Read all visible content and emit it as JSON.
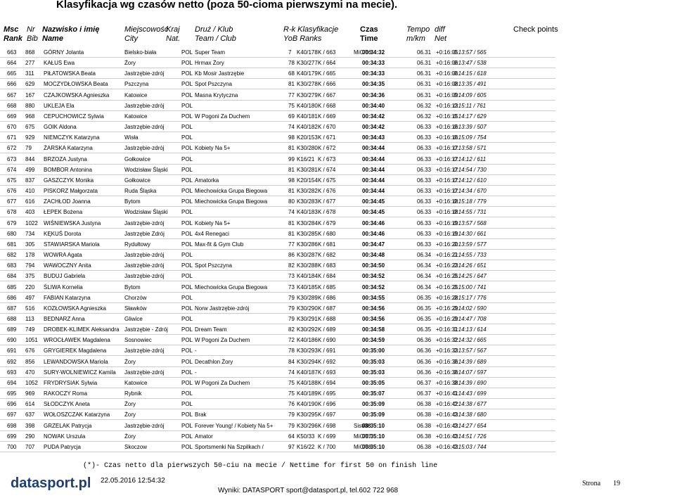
{
  "header": {
    "title": "Klasyfikacja wg czasów netto (poza 50-cioma pierwszymi na mecie).",
    "columns": [
      [
        "Msc",
        "Rank"
      ],
      [
        "Nr",
        "Bib"
      ],
      [
        "Nazwisko i imię",
        "Name"
      ],
      [
        "Miejscowość",
        "City"
      ],
      [
        "Kraj",
        "Nat."
      ],
      [
        "Druż / Klub",
        "Team / Club"
      ],
      [
        "R-k Klasyfikacje",
        "YoB Ranks"
      ],
      [
        "Czas",
        "Time"
      ],
      [
        "Tempo",
        "m/km"
      ],
      [
        "diff",
        "Net"
      ],
      [
        "Check points"
      ]
    ]
  },
  "rows": [
    [
      "663",
      "868",
      "GÓRNY Jolanta",
      "Bielsko-biała",
      "POL",
      "Super Team",
      "7",
      "K40/178",
      "K / 663",
      "MiC/56",
      "00:34:32",
      "06.31",
      "+0:16:05",
      "0:13:57 / 565"
    ],
    [
      "664",
      "277",
      "KAŁUS Ewa",
      "Żory",
      "POL",
      "Hrmax Żory",
      "78",
      "K30/277",
      "K / 664",
      null,
      "00:34:33",
      "06.31",
      "+0:16:06",
      "0:13:47 / 538"
    ],
    [
      "665",
      "311",
      "PIŁATOWSKA Beata",
      "Jastrzębie-zdrój",
      "POL",
      "Kb Mosir Jastrzębie",
      "68",
      "K40/179",
      "K / 665",
      null,
      "00:34:33",
      "06.31",
      "+0:16:06",
      "0:14:15 / 618"
    ],
    [
      "666",
      "629",
      "MOCZYDŁOWSKA Beata",
      "Pszczyna",
      "POL",
      "Spot Pszczyna",
      "81",
      "K30/278",
      "K / 666",
      null,
      "00:34:35",
      "06.31",
      "+0:16:08",
      "0:13:35 / 491"
    ],
    [
      "667",
      "167",
      "CZAJKOWSKA Agnieszka",
      "Katowice",
      "POL",
      "Masna Krytyczna",
      "77",
      "K30/279",
      "K / 667",
      null,
      "00:34:36",
      "06.31",
      "+0:16:09",
      "0:14:09 / 605"
    ],
    [
      "668",
      "880",
      "UKLEJA Ela",
      "Jastrzębie-zdrój",
      "POL",
      null,
      "75",
      "K40/180",
      "K / 668",
      null,
      "00:34:40",
      "06.32",
      "+0:16:13",
      "0:15:11 / 761"
    ],
    [
      "669",
      "968",
      "CEPUCHOWICZ Sylwia",
      "Katowice",
      "POL",
      "W Pogoni Za Duchem",
      "69",
      "K40/181",
      "K / 669",
      null,
      "00:34:42",
      "06.32",
      "+0:16:15",
      "0:14:17 / 629"
    ],
    [
      "670",
      "675",
      "GOIK Aldona",
      "Jastrzębie-zdrój",
      "POL",
      null,
      "74",
      "K40/182",
      "K / 670",
      null,
      "00:34:42",
      "06.33",
      "+0:16:16",
      "0:13:39 / 507"
    ],
    [
      "671",
      "929",
      "NIEMCZYK Katarzyna",
      "Wisła",
      "POL",
      null,
      "98",
      "K20/153",
      "K / 671",
      null,
      "00:34:43",
      "06.33",
      "+0:16:16",
      "0:15:09 / 754"
    ],
    [
      "672",
      "79",
      "ŻARSKA Katarzyna",
      "Jastrzębie-zdrój",
      "POL",
      "Kobiety Na 5+",
      "81",
      "K30/280",
      "K / 672",
      null,
      "00:34:44",
      "06.33",
      "+0:16:17",
      "0:13:58 / 571"
    ],
    [
      "673",
      "844",
      "BRZOZA Justyna",
      "Gołkowice",
      "POL",
      null,
      "99",
      "K16/21",
      "K / 673",
      null,
      "00:34:44",
      "06.33",
      "+0:16:17",
      "0:14:12 / 611"
    ],
    [
      "674",
      "499",
      "BOMBOR Antonina",
      "Wodzisław Śląski",
      "POL",
      null,
      "81",
      "K30/281",
      "K / 674",
      null,
      "00:34:44",
      "06.33",
      "+0:16:17",
      "0:14:54 / 730"
    ],
    [
      "675",
      "837",
      "GASZCZYK Monika",
      "Gołkowice",
      "POL",
      "Amatorka",
      "98",
      "K20/154",
      "K / 675",
      null,
      "00:34:44",
      "06.33",
      "+0:16:17",
      "0:14:12 / 610"
    ],
    [
      "676",
      "410",
      "PISKORZ Małgorzata",
      "Ruda Śląska",
      "POL",
      "Miechowicka Grupa Biegowa",
      "81",
      "K30/282",
      "K / 676",
      null,
      "00:34:44",
      "06.33",
      "+0:16:17",
      "0:14:34 / 670"
    ],
    [
      "677",
      "616",
      "ZACHŁOD Joanna",
      "Bytom",
      "POL",
      "Miechowicka Grupa Biegowa",
      "80",
      "K30/283",
      "K / 677",
      null,
      "00:34:45",
      "06.33",
      "+0:16:18",
      "0:15:18 / 779"
    ],
    [
      "678",
      "403",
      "ŁEPEK Bożena",
      "Wodzisław Śląski",
      "POL",
      null,
      "74",
      "K40/183",
      "K / 678",
      null,
      "00:34:45",
      "06.33",
      "+0:16:18",
      "0:14:55 / 731"
    ],
    [
      "679",
      "1022",
      "WIŚNIEWSKA Justyna",
      "Jastrzębie-zdrój",
      "POL",
      "Kobiety Na 5+",
      "81",
      "K30/284",
      "K / 679",
      null,
      "00:34:46",
      "06.33",
      "+0:16:19",
      "0:13:57 / 568"
    ],
    [
      "680",
      "734",
      "KĘKUŚ Dorota",
      "Jastrzębie Zdrój",
      "POL",
      "4x4 Renegaci",
      "81",
      "K30/285",
      "K / 680",
      null,
      "00:34:46",
      "06.33",
      "+0:16:19",
      "0:14:30 / 661"
    ],
    [
      "681",
      "305",
      "STAWIARSKA Mariola",
      "Rydułtowy",
      "POL",
      "Max-fit & Gym Club",
      "77",
      "K30/286",
      "K / 681",
      null,
      "00:34:47",
      "06.33",
      "+0:16:20",
      "0:13:59 / 577"
    ],
    [
      "682",
      "178",
      "WOWRA Agata",
      "Jastrzębie-zdrój",
      "POL",
      null,
      "86",
      "K30/287",
      "K / 682",
      null,
      "00:34:48",
      "06.34",
      "+0:16:21",
      "0:14:55 / 733"
    ],
    [
      "683",
      "794",
      "WAWOCZNY Anita",
      "Jastrzębie-zdrój",
      "POL",
      "Spot Pszczyna",
      "82",
      "K30/288",
      "K / 683",
      null,
      "00:34:50",
      "06.34",
      "+0:16:23",
      "0:14:26 / 651"
    ],
    [
      "684",
      "375",
      "BUDUJ Gabriela",
      "Jastrzębie-zdrój",
      "POL",
      null,
      "73",
      "K40/184",
      "K / 684",
      null,
      "00:34:52",
      "06.34",
      "+0:16:25",
      "0:14:25 / 647"
    ],
    [
      "685",
      "220",
      "ŚLIWA Kornelia",
      "Bytom",
      "POL",
      "Miechowicka Grupa Biegowa",
      "73",
      "K40/185",
      "K / 685",
      null,
      "00:34:52",
      "06.34",
      "+0:16:25",
      "0:15:00 / 741"
    ],
    [
      "686",
      "497",
      "FABIAN Katarzyna",
      "Chorzów",
      "POL",
      null,
      "79",
      "K30/289",
      "K / 686",
      null,
      "00:34:55",
      "06.35",
      "+0:16:28",
      "0:15:17 / 776"
    ],
    [
      "687",
      "516",
      "KOZŁOWSKA Agnieszka",
      "Sławków",
      "POL",
      "Norw Jastrzębie-zdrój",
      "79",
      "K30/290",
      "K / 687",
      null,
      "00:34:56",
      "06.35",
      "+0:16:29",
      "0:14:02 / 590"
    ],
    [
      "688",
      "113",
      "BEDNARZ Anna",
      "Gliwice",
      "POL",
      null,
      "79",
      "K30/291",
      "K / 688",
      null,
      "00:34:56",
      "06.35",
      "+0:16:29",
      "0:14:47 / 708"
    ],
    [
      "689",
      "749",
      "DROBEK-KLIMEK Aleksandra",
      "Jastrzębie - Zdrój",
      "POL",
      "Dream Team",
      "82",
      "K30/292",
      "K / 689",
      null,
      "00:34:58",
      "06.35",
      "+0:16:31",
      "0:14:13 / 614"
    ],
    [
      "690",
      "1051",
      "WROCŁAWEK Magdalena",
      "Sosnowiec",
      "POL",
      "W Pogoni Za Duchem",
      "72",
      "K40/186",
      "K / 690",
      null,
      "00:34:59",
      "06.36",
      "+0:16:32",
      "0:14:32 / 665"
    ],
    [
      "691",
      "676",
      "GRYGIEREK Magdalena",
      "Jastrzębie-zdrój",
      "POL",
      "-",
      "78",
      "K30/293",
      "K / 691",
      null,
      "00:35:00",
      "06.36",
      "+0:16:33",
      "0:13:57 / 567"
    ],
    [
      "692",
      "856",
      "LEWANDOWSKA Mariola",
      "Żory",
      "POL",
      "Decathlon Żory",
      "84",
      "K30/294",
      "K / 692",
      null,
      "00:35:03",
      "06.36",
      "+0:16:36",
      "0:14:39 / 689"
    ],
    [
      "693",
      "470",
      "SURY-WOLNIEWICZ Kamila",
      "Jastrzębie-zdrój",
      "POL",
      "-",
      "74",
      "K40/187",
      "K / 693",
      null,
      "00:35:03",
      "06.36",
      "+0:16:36",
      "0:14:07 / 597"
    ],
    [
      "694",
      "1052",
      "FRYDRYSIAK Sylwia",
      "Katowice",
      "POL",
      "W Pogoni Za Duchem",
      "75",
      "K40/188",
      "K / 694",
      null,
      "00:35:05",
      "06.37",
      "+0:16:38",
      "0:14:39 / 690"
    ],
    [
      "695",
      "969",
      "RAKOCZY Roma",
      "Rybnik",
      "POL",
      null,
      "75",
      "K40/189",
      "K / 695",
      null,
      "00:35:07",
      "06.37",
      "+0:16:41",
      "0:14:43 / 699"
    ],
    [
      "696",
      "614",
      "SŁODCZYK Aneta",
      "Żory",
      "POL",
      null,
      "76",
      "K40/190",
      "K / 696",
      null,
      "00:35:09",
      "06.38",
      "+0:16:42",
      "0:14:38 / 677"
    ],
    [
      "697",
      "637",
      "WOŁOSZCZAK Katarzyna",
      "Żory",
      "POL",
      "Brak",
      "79",
      "K30/295",
      "K / 697",
      null,
      "00:35:09",
      "06.38",
      "+0:16:43",
      "0:14:38 / 680"
    ],
    [
      "698",
      "398",
      "GRZELAK Patrycja",
      "Jastrzębie-zdrój",
      "POL",
      "Forever Young! / Kobiety Na 5+",
      "79",
      "K30/296",
      "K / 698",
      "Sist/38",
      "00:35:10",
      "06.38",
      "+0:16:43",
      "0:14:27 / 654"
    ],
    [
      "699",
      "290",
      "NOWAK Urszula",
      "Żory",
      "POL",
      "Amator",
      "64",
      "K50/33",
      "K / 699",
      "MiC/57",
      "00:35:10",
      "06.38",
      "+0:16:43",
      "0:14:51 / 726"
    ],
    [
      "700",
      "707",
      "PUDA Patrycja",
      "Skoczow",
      "POL",
      "Sportsmenki Na Szpilkach /",
      "97",
      "K16/22",
      "K / 700",
      "MiC/58",
      "00:35:10",
      "06.38",
      "+0:16:43",
      "0:15:03 / 744"
    ]
  ],
  "footer": {
    "note": "(*)- Czas netto dla pierwszych 50-ciu na mecie / Nettime for first 50 on finish line",
    "logo": "datasport.pl",
    "date": "22.05.2016 12:54:32",
    "contact": "Wyniki: DATASPORT sport@datasport.pl, tel.602 722 968",
    "page_label": "Strona",
    "page": "19"
  }
}
